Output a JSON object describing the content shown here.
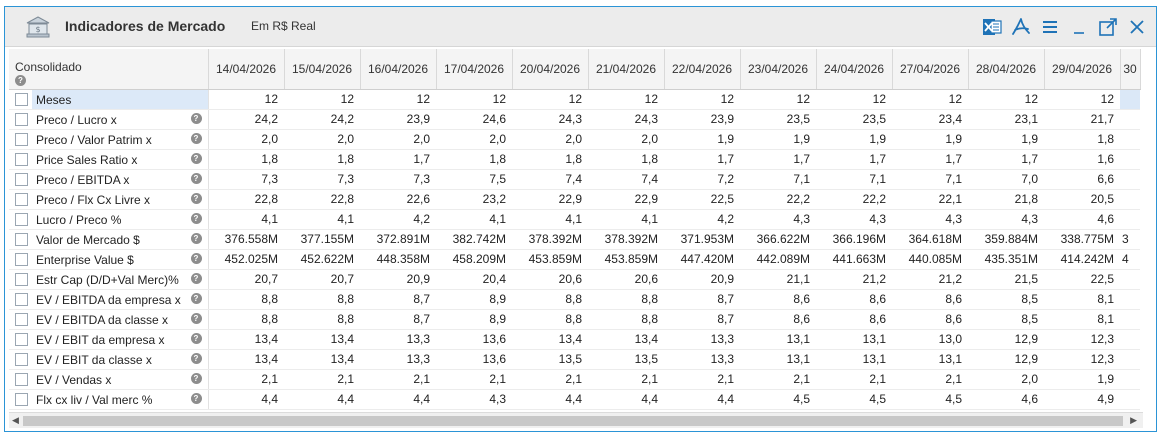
{
  "window": {
    "title": "Indicadores de Mercado",
    "subtitle": "Em R$ Real"
  },
  "toolbar": {
    "icons": [
      "excel-icon",
      "pdf-icon",
      "menu-icon",
      "minimize-icon",
      "popout-icon",
      "close-icon"
    ],
    "close_glyph": "✕",
    "minimize_glyph": "_",
    "menu_glyph": "☰"
  },
  "grid": {
    "corner_label": "Consolidado",
    "help_glyph": "?",
    "dates": [
      "14/04/2026",
      "15/04/2026",
      "16/04/2026",
      "17/04/2026",
      "20/04/2026",
      "21/04/2026",
      "22/04/2026",
      "23/04/2026",
      "24/04/2026",
      "27/04/2026",
      "28/04/2026",
      "29/04/2026",
      "30"
    ],
    "rows": [
      {
        "label": "Meses",
        "help": false,
        "selected": true,
        "values": [
          "12",
          "12",
          "12",
          "12",
          "12",
          "12",
          "12",
          "12",
          "12",
          "12",
          "12",
          "12",
          ""
        ]
      },
      {
        "label": "Preco / Lucro x",
        "help": true,
        "values": [
          "24,2",
          "24,2",
          "23,9",
          "24,6",
          "24,3",
          "24,3",
          "23,9",
          "23,5",
          "23,5",
          "23,4",
          "23,1",
          "21,7",
          ""
        ]
      },
      {
        "label": "Preco / Valor Patrim x",
        "help": true,
        "values": [
          "2,0",
          "2,0",
          "2,0",
          "2,0",
          "2,0",
          "2,0",
          "1,9",
          "1,9",
          "1,9",
          "1,9",
          "1,9",
          "1,8",
          ""
        ]
      },
      {
        "label": "Price Sales Ratio x",
        "help": true,
        "values": [
          "1,8",
          "1,8",
          "1,7",
          "1,8",
          "1,8",
          "1,8",
          "1,7",
          "1,7",
          "1,7",
          "1,7",
          "1,7",
          "1,6",
          ""
        ]
      },
      {
        "label": "Preco / EBITDA x",
        "help": true,
        "values": [
          "7,3",
          "7,3",
          "7,3",
          "7,5",
          "7,4",
          "7,4",
          "7,2",
          "7,1",
          "7,1",
          "7,1",
          "7,0",
          "6,6",
          ""
        ]
      },
      {
        "label": "Preco / Flx Cx Livre x",
        "help": true,
        "values": [
          "22,8",
          "22,8",
          "22,6",
          "23,2",
          "22,9",
          "22,9",
          "22,5",
          "22,2",
          "22,2",
          "22,1",
          "21,8",
          "20,5",
          ""
        ]
      },
      {
        "label": "Lucro / Preco %",
        "help": true,
        "values": [
          "4,1",
          "4,1",
          "4,2",
          "4,1",
          "4,1",
          "4,1",
          "4,2",
          "4,3",
          "4,3",
          "4,3",
          "4,3",
          "4,6",
          ""
        ]
      },
      {
        "label": "Valor de Mercado $",
        "help": true,
        "values": [
          "376.558M",
          "377.155M",
          "372.891M",
          "382.742M",
          "378.392M",
          "378.392M",
          "371.953M",
          "366.622M",
          "366.196M",
          "364.618M",
          "359.884M",
          "338.775M",
          "3"
        ]
      },
      {
        "label": "Enterprise Value $",
        "help": true,
        "values": [
          "452.025M",
          "452.622M",
          "448.358M",
          "458.209M",
          "453.859M",
          "453.859M",
          "447.420M",
          "442.089M",
          "441.663M",
          "440.085M",
          "435.351M",
          "414.242M",
          "4"
        ]
      },
      {
        "label": "Estr Cap (D/D+Val Merc)%",
        "help": true,
        "values": [
          "20,7",
          "20,7",
          "20,9",
          "20,4",
          "20,6",
          "20,6",
          "20,9",
          "21,1",
          "21,2",
          "21,2",
          "21,5",
          "22,5",
          ""
        ]
      },
      {
        "label": "EV / EBITDA da empresa x",
        "help": true,
        "values": [
          "8,8",
          "8,8",
          "8,7",
          "8,9",
          "8,8",
          "8,8",
          "8,7",
          "8,6",
          "8,6",
          "8,6",
          "8,5",
          "8,1",
          ""
        ]
      },
      {
        "label": "EV / EBITDA da classe  x",
        "help": true,
        "values": [
          "8,8",
          "8,8",
          "8,7",
          "8,9",
          "8,8",
          "8,8",
          "8,7",
          "8,6",
          "8,6",
          "8,6",
          "8,5",
          "8,1",
          ""
        ]
      },
      {
        "label": "EV / EBIT da empresa  x",
        "help": true,
        "values": [
          "13,4",
          "13,4",
          "13,3",
          "13,6",
          "13,4",
          "13,4",
          "13,3",
          "13,1",
          "13,1",
          "13,0",
          "12,9",
          "12,3",
          ""
        ]
      },
      {
        "label": "EV / EBIT da classe   x",
        "help": true,
        "values": [
          "13,4",
          "13,4",
          "13,3",
          "13,6",
          "13,5",
          "13,5",
          "13,3",
          "13,1",
          "13,1",
          "13,1",
          "12,9",
          "12,3",
          ""
        ]
      },
      {
        "label": "EV / Vendas x",
        "help": true,
        "values": [
          "2,1",
          "2,1",
          "2,1",
          "2,1",
          "2,1",
          "2,1",
          "2,1",
          "2,1",
          "2,1",
          "2,1",
          "2,0",
          "1,9",
          ""
        ]
      },
      {
        "label": "Flx cx liv / Val merc %",
        "help": true,
        "values": [
          "4,4",
          "4,4",
          "4,4",
          "4,3",
          "4,4",
          "4,4",
          "4,4",
          "4,5",
          "4,5",
          "4,5",
          "4,6",
          "4,9",
          ""
        ]
      }
    ]
  },
  "scrollbar": {
    "left_arrow": "◀",
    "right_arrow": "▶"
  },
  "colors": {
    "accent": "#2b94d6",
    "selected_row": "#dce9f8",
    "excel": "#1f73b7",
    "header_bg": "#f4f4f4"
  }
}
